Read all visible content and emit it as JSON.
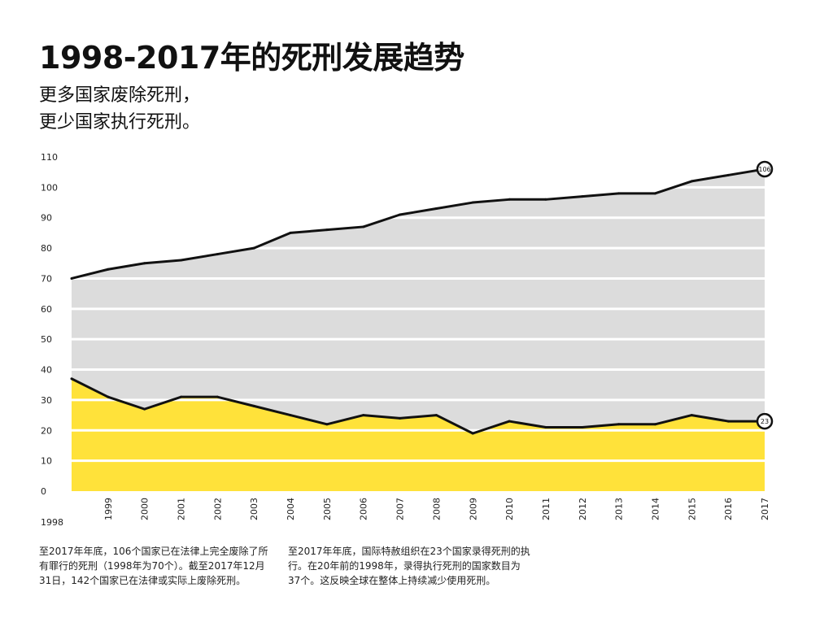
{
  "title": "1998-2017年的死刑发展趋势",
  "subtitle": [
    "更多国家废除死刑，",
    "更少国家执行死刑。"
  ],
  "notes": {
    "left": "至2017年年底，106个国家已在法律上完全废除了所有罪行的死刑（1998年为70个）。截至2017年12月31日，142个国家已在法律或实际上废除死刑。",
    "right": "至2017年年底，国际特赦组织在23个国家录得死刑的执行。在20年前的1998年，录得执行死刑的国家数目为37个。这反映全球在整体上持续减少使用死刑。"
  },
  "colors": {
    "abolished_fill": "#dcdcdc",
    "executing_fill": "#ffe23a",
    "line": "#111111",
    "grid": "#ffffff"
  },
  "chart_data": {
    "type": "area",
    "x": [
      "1998",
      "1999",
      "2000",
      "2001",
      "2002",
      "2003",
      "2004",
      "2005",
      "2006",
      "2007",
      "2008",
      "2009",
      "2010",
      "2011",
      "2012",
      "2013",
      "2014",
      "2015",
      "2016",
      "2017"
    ],
    "series": [
      {
        "values": [
          70,
          73,
          75,
          76,
          78,
          80,
          85,
          86,
          87,
          91,
          93,
          95,
          96,
          96,
          97,
          98,
          98,
          102,
          104,
          106
        ],
        "end_label": "106"
      },
      {
        "values": [
          37,
          31,
          27,
          31,
          31,
          28,
          25,
          22,
          25,
          24,
          25,
          19,
          23,
          21,
          21,
          22,
          22,
          25,
          23,
          23
        ],
        "end_label": "23"
      }
    ],
    "ylim": [
      0,
      110
    ],
    "yticks": [
      0,
      10,
      20,
      30,
      40,
      50,
      60,
      70,
      80,
      90,
      100,
      110
    ],
    "grid": true
  }
}
